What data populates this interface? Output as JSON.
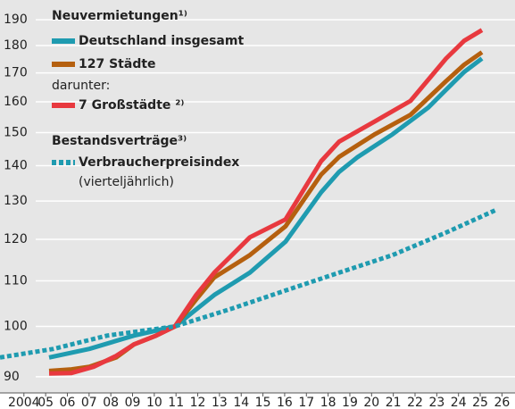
{
  "chart_data": {
    "type": "line",
    "log_y": true,
    "grid": true,
    "xlim": [
      2002.9,
      2026.6
    ],
    "ylim": [
      87,
      198
    ],
    "yticks": [
      90,
      100,
      110,
      120,
      130,
      140,
      150,
      160,
      170,
      180,
      190
    ],
    "xticks": [
      2004,
      {
        "value": 2005,
        "label": "05"
      },
      {
        "value": 2006,
        "label": "06"
      },
      {
        "value": 2007,
        "label": "07"
      },
      {
        "value": 2008,
        "label": "08"
      },
      {
        "value": 2009,
        "label": "09"
      },
      {
        "value": 2010,
        "label": "10"
      },
      {
        "value": 2011,
        "label": "11"
      },
      {
        "value": 2012,
        "label": "12"
      },
      {
        "value": 2013,
        "label": "13"
      },
      {
        "value": 2014,
        "label": "14"
      },
      {
        "value": 2015,
        "label": "15"
      },
      {
        "value": 2016,
        "label": "16"
      },
      {
        "value": 2017,
        "label": "17"
      },
      {
        "value": 2018,
        "label": "18"
      },
      {
        "value": 2019,
        "label": "19"
      },
      {
        "value": 2020,
        "label": "20"
      },
      {
        "value": 2021,
        "label": "21"
      },
      {
        "value": 2022,
        "label": "22"
      },
      {
        "value": 2023,
        "label": "23"
      },
      {
        "value": 2024,
        "label": "24"
      },
      {
        "value": 2025,
        "label": "25"
      },
      {
        "value": 2026,
        "label": "26"
      }
    ],
    "legend_texts": [
      "Neuvermietungen¹⁾",
      "darunter:",
      "Bestandsverträge³⁾",
      "(vierteljährlich)"
    ],
    "series": [
      {
        "name": "Deutschland insgesamt",
        "color": "#1f9bb0",
        "dashed": false,
        "x": [
          2005.16,
          2007.01,
          2009.06,
          2010.95,
          2012.76,
          2014.4,
          2016.04,
          2017.68,
          2018.51,
          2019.33,
          2020.97,
          2022.61,
          2023.43,
          2024.26,
          2025.08
        ],
        "values": [
          93.7,
          95.4,
          98.1,
          100,
          106.8,
          111.9,
          119.4,
          132.4,
          138.2,
          142.4,
          149.5,
          158.1,
          164.1,
          170.3,
          175.2
        ]
      },
      {
        "name": "127 Städte",
        "color": "#b5600f",
        "dashed": false,
        "x": [
          2005.16,
          2006.19,
          2007.01,
          2008.24,
          2009.06,
          2010.09,
          2010.95,
          2011.93,
          2012.76,
          2014.4,
          2016.04,
          2017.68,
          2018.51,
          2020.15,
          2021.79,
          2023.43,
          2024.26,
          2025.08
        ],
        "values": [
          91.1,
          91.4,
          91.9,
          93.7,
          96.3,
          98.1,
          100,
          105.8,
          110.8,
          116.1,
          123.3,
          137.4,
          142.6,
          149.5,
          155.7,
          167.1,
          172.9,
          177.5
        ]
      },
      {
        "name": "7 Großstädte ²⁾",
        "color": "#e8393f",
        "dashed": false,
        "x": [
          2005.16,
          2006.19,
          2007.21,
          2008.24,
          2009.06,
          2010.09,
          2010.95,
          2011.93,
          2012.76,
          2014.4,
          2016.04,
          2017.68,
          2018.51,
          2020.15,
          2021.79,
          2023.43,
          2024.26,
          2025.08
        ],
        "values": [
          90.6,
          90.7,
          91.9,
          94.0,
          96.3,
          98.1,
          100,
          106.8,
          111.9,
          120.5,
          125.1,
          141.3,
          147.2,
          153.6,
          160.3,
          175.2,
          181.8,
          185.9
        ]
      },
      {
        "name": "Verbraucherpreisindex",
        "color": "#1f9bb0",
        "dashed": true,
        "x": [
          2002.9,
          2005.36,
          2007.83,
          2010.95,
          2013.58,
          2016.04,
          2018.51,
          2020.97,
          2023.43,
          2025.69
        ],
        "values": [
          93.7,
          95.4,
          98.1,
          100,
          103.8,
          107.8,
          111.9,
          116.1,
          121.7,
          127.5
        ]
      }
    ]
  }
}
